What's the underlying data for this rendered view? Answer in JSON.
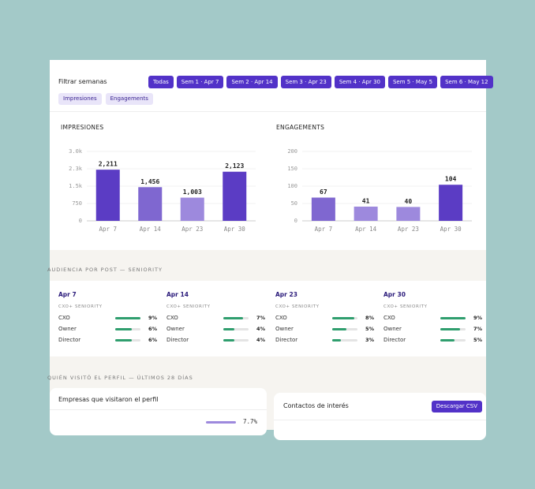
{
  "filters": {
    "label": "Filtrar semanas",
    "weeks": [
      "Todas",
      "Sem 1 · Apr 7",
      "Sem 2 · Apr 14",
      "Sem 3 · Apr 23",
      "Sem 4 · Apr 30",
      "Sem 5 · May 5",
      "Sem 6 · May 12"
    ],
    "metrics": [
      "Impresiones",
      "Engagements"
    ]
  },
  "chart_data": [
    {
      "type": "bar",
      "title": "IMPRESIONES",
      "categories": [
        "Apr 7",
        "Apr 14",
        "Apr 23",
        "Apr 30"
      ],
      "values": [
        2211,
        1456,
        1003,
        2123
      ],
      "value_labels": [
        "2,211",
        "1,456",
        "1,003",
        "2,123"
      ],
      "colors": [
        "#5b3cc4",
        "#7f67d0",
        "#9d89dd",
        "#5b3cc4"
      ],
      "ylim": [
        0,
        3000
      ],
      "yticks": [
        0,
        750,
        {
          "value": 1500,
          "label": "1.5k"
        },
        {
          "value": 2250,
          "label": "2.3k"
        },
        {
          "value": 3000,
          "label": "3.0k"
        }
      ],
      "grid": true
    },
    {
      "type": "bar",
      "title": "ENGAGEMENTS",
      "categories": [
        "Apr 7",
        "Apr 14",
        "Apr 23",
        "Apr 30"
      ],
      "values": [
        67,
        41,
        40,
        104
      ],
      "colors": [
        "#7f67d0",
        "#9d89dd",
        "#9d89dd",
        "#5b3cc4"
      ],
      "ylim": [
        0,
        200
      ],
      "yticks": [
        0,
        50,
        100,
        150,
        200
      ],
      "grid": true
    }
  ],
  "audience": {
    "title": "AUDIENCIA POR POST — SENIORITY",
    "posts": [
      {
        "title": "Apr 7",
        "subtitle": "CXO+ SENIORITY",
        "rows": [
          {
            "name": "CXO",
            "value": 9,
            "label": "9%"
          },
          {
            "name": "Owner",
            "value": 6,
            "label": "6%"
          },
          {
            "name": "Director",
            "value": 6,
            "label": "6%"
          }
        ]
      },
      {
        "title": "Apr 14",
        "subtitle": "CXO+ SENIORITY",
        "rows": [
          {
            "name": "CXO",
            "value": 7,
            "label": "7%"
          },
          {
            "name": "Owner",
            "value": 4,
            "label": "4%"
          },
          {
            "name": "Director",
            "value": 4,
            "label": "4%"
          }
        ]
      },
      {
        "title": "Apr 23",
        "subtitle": "CXO+ SENIORITY",
        "rows": [
          {
            "name": "CXO",
            "value": 8,
            "label": "8%"
          },
          {
            "name": "Owner",
            "value": 5,
            "label": "5%"
          },
          {
            "name": "Director",
            "value": 3,
            "label": "3%"
          }
        ]
      },
      {
        "title": "Apr 30",
        "subtitle": "CXO+ SENIORITY",
        "rows": [
          {
            "name": "CXO",
            "value": 9,
            "label": "9%"
          },
          {
            "name": "Owner",
            "value": 7,
            "label": "7%"
          },
          {
            "name": "Director",
            "value": 5,
            "label": "5%"
          }
        ]
      }
    ]
  },
  "visits": {
    "title": "QUIÉN VISITÓ EL PERFIL — ÚLTIMOS 28 DÍAS",
    "companies": {
      "title": "Empresas que visitaron el perfil",
      "rows": [
        {
          "value": 7.7,
          "label": "7.7%"
        }
      ]
    },
    "contacts": {
      "title": "Contactos de interés",
      "button": "Descargar CSV"
    }
  }
}
